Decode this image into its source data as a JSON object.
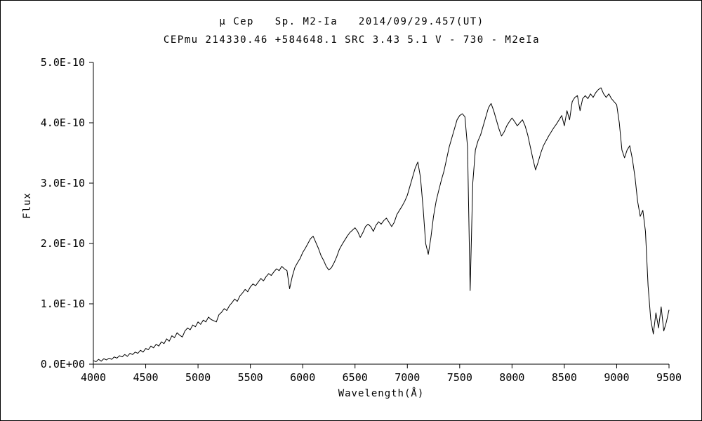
{
  "page": {
    "title_line1": "μ Cep   Sp. M2-Ia   2014/09/29.457(UT)",
    "title_line2": "CEPmu 214330.46 +584648.1 SRC 3.43 5.1 V - 730 - M2eIa"
  },
  "chart_data": {
    "type": "line",
    "title": "μ Cep   Sp. M2-Ia   2014/09/29.457(UT)",
    "subtitle": "CEPmu 214330.46 +584648.1 SRC 3.43 5.1 V - 730 - M2eIa",
    "xlabel": "Wavelength(Å)",
    "ylabel": "Flux",
    "xlim": [
      4000,
      9500
    ],
    "ylim": [
      0,
      5e-10
    ],
    "ylim_units": [
      0,
      5
    ],
    "flux_unit": "1e-10",
    "grid": false,
    "legend": "none",
    "line_color": "#000000",
    "x_ticks": [
      "4000",
      "4500",
      "5000",
      "5500",
      "6000",
      "6500",
      "7000",
      "7500",
      "8000",
      "8500",
      "9000",
      "9500"
    ],
    "x_tick_values": [
      4000,
      4500,
      5000,
      5500,
      6000,
      6500,
      7000,
      7500,
      8000,
      8500,
      9000,
      9500
    ],
    "y_ticks": [
      "0.0E+00",
      "1.0E-10",
      "2.0E-10",
      "3.0E-10",
      "4.0E-10",
      "5.0E-10"
    ],
    "y_tick_values_units": [
      0,
      1,
      2,
      3,
      4,
      5
    ],
    "x_start": 4000,
    "x_step": 25,
    "flux": [
      0.06,
      0.04,
      0.08,
      0.05,
      0.09,
      0.07,
      0.1,
      0.08,
      0.12,
      0.1,
      0.14,
      0.12,
      0.16,
      0.13,
      0.18,
      0.16,
      0.2,
      0.18,
      0.23,
      0.2,
      0.26,
      0.24,
      0.3,
      0.27,
      0.33,
      0.3,
      0.37,
      0.34,
      0.42,
      0.38,
      0.47,
      0.44,
      0.52,
      0.48,
      0.45,
      0.55,
      0.6,
      0.57,
      0.65,
      0.62,
      0.7,
      0.66,
      0.73,
      0.7,
      0.78,
      0.74,
      0.72,
      0.7,
      0.82,
      0.86,
      0.92,
      0.89,
      0.97,
      1.02,
      1.08,
      1.04,
      1.13,
      1.18,
      1.24,
      1.2,
      1.28,
      1.33,
      1.3,
      1.36,
      1.42,
      1.38,
      1.45,
      1.5,
      1.47,
      1.53,
      1.58,
      1.55,
      1.62,
      1.58,
      1.55,
      1.25,
      1.45,
      1.6,
      1.68,
      1.75,
      1.85,
      1.92,
      2.0,
      2.08,
      2.12,
      2.02,
      1.92,
      1.8,
      1.72,
      1.62,
      1.56,
      1.6,
      1.68,
      1.78,
      1.9,
      1.98,
      2.05,
      2.12,
      2.18,
      2.22,
      2.26,
      2.2,
      2.1,
      2.18,
      2.28,
      2.32,
      2.28,
      2.2,
      2.3,
      2.36,
      2.32,
      2.38,
      2.42,
      2.35,
      2.28,
      2.35,
      2.48,
      2.55,
      2.62,
      2.7,
      2.8,
      2.95,
      3.1,
      3.25,
      3.35,
      3.1,
      2.6,
      2.0,
      1.82,
      2.1,
      2.45,
      2.7,
      2.88,
      3.05,
      3.2,
      3.4,
      3.6,
      3.75,
      3.9,
      4.05,
      4.12,
      4.15,
      4.1,
      3.6,
      1.22,
      3.0,
      3.55,
      3.7,
      3.8,
      3.95,
      4.1,
      4.25,
      4.32,
      4.2,
      4.05,
      3.9,
      3.78,
      3.85,
      3.95,
      4.02,
      4.08,
      4.02,
      3.95,
      4.0,
      4.05,
      3.95,
      3.8,
      3.6,
      3.4,
      3.22,
      3.35,
      3.5,
      3.62,
      3.7,
      3.78,
      3.85,
      3.92,
      3.98,
      4.05,
      4.12,
      3.95,
      4.2,
      4.05,
      4.35,
      4.42,
      4.45,
      4.2,
      4.4,
      4.45,
      4.4,
      4.48,
      4.42,
      4.5,
      4.55,
      4.58,
      4.48,
      4.42,
      4.48,
      4.4,
      4.35,
      4.3,
      4.0,
      3.55,
      3.42,
      3.55,
      3.62,
      3.4,
      3.1,
      2.7,
      2.45,
      2.55,
      2.2,
      1.3,
      0.75,
      0.5,
      0.85,
      0.6,
      0.95,
      0.55,
      0.7,
      0.9
    ]
  }
}
